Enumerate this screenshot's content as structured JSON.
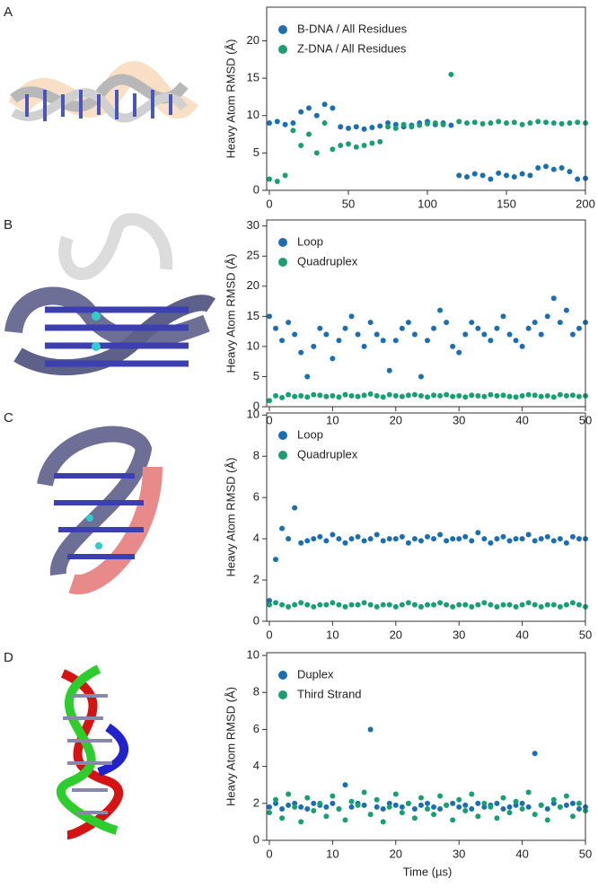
{
  "chart_data": [
    {
      "type": "scatter",
      "panel": "A",
      "ylabel": "Heavy Atom RMSD (Å)",
      "x": [
        0,
        5,
        10,
        15,
        20,
        25,
        30,
        35,
        40,
        45,
        50,
        55,
        60,
        65,
        70,
        75,
        80,
        85,
        90,
        95,
        100,
        105,
        110,
        115,
        120,
        125,
        130,
        135,
        140,
        145,
        150,
        155,
        160,
        165,
        170,
        175,
        180,
        185,
        190,
        195,
        200
      ],
      "series": [
        {
          "name": "B-DNA / All Residues",
          "color": "#1b6fb0",
          "values": [
            9,
            9.2,
            8.8,
            9,
            10.5,
            11,
            10,
            11.5,
            11,
            8.5,
            8.3,
            8.5,
            8.2,
            8.4,
            8.6,
            9,
            8.8,
            8.5,
            8.7,
            9,
            9.2,
            8.8,
            9,
            8.7,
            2,
            1.8,
            2.2,
            2,
            1.5,
            2.3,
            2,
            1.8,
            2.2,
            2,
            3,
            3.2,
            2.8,
            3,
            2.5,
            1.5,
            1.6
          ]
        },
        {
          "name": "Z-DNA / All Residues",
          "color": "#1a9e74",
          "values": [
            1.5,
            1.2,
            2,
            8,
            6,
            7.5,
            5,
            9,
            5.5,
            6,
            6.2,
            5.8,
            6,
            6.3,
            6.5,
            8.5,
            8.3,
            8.8,
            8.5,
            8.7,
            8.9,
            9,
            8.8,
            15.5,
            9.2,
            9,
            9.1,
            8.9,
            9,
            9.2,
            9,
            9.1,
            8.8,
            9,
            9.2,
            9.1,
            9,
            8.9,
            9,
            9.1,
            9
          ]
        }
      ],
      "xlim": [
        0,
        200
      ],
      "xticks": [
        0,
        50,
        100,
        150,
        200
      ],
      "ylim": [
        0,
        24.5
      ],
      "yticks": [
        0,
        5,
        10,
        15,
        20
      ]
    },
    {
      "type": "scatter",
      "panel": "B",
      "ylabel": "Heavy Atom RMSD (Å)",
      "x": [
        0,
        1,
        2,
        3,
        4,
        5,
        6,
        7,
        8,
        9,
        10,
        11,
        12,
        13,
        14,
        15,
        16,
        17,
        18,
        19,
        20,
        21,
        22,
        23,
        24,
        25,
        26,
        27,
        28,
        29,
        30,
        31,
        32,
        33,
        34,
        35,
        36,
        37,
        38,
        39,
        40,
        41,
        42,
        43,
        44,
        45,
        46,
        47,
        48,
        49,
        50
      ],
      "series": [
        {
          "name": "Loop",
          "color": "#1b6fb0",
          "values": [
            15,
            13,
            11,
            14,
            12,
            9,
            5,
            10,
            13,
            12,
            8,
            11,
            13,
            15,
            12,
            10,
            14,
            12,
            11,
            6,
            11,
            13,
            14,
            12,
            5,
            11,
            13,
            16,
            14,
            10,
            9,
            12,
            14,
            13,
            12,
            11,
            13,
            15,
            12,
            11,
            10,
            13,
            14,
            12,
            15,
            18,
            14,
            16,
            12,
            13,
            14
          ]
        },
        {
          "name": "Quadruplex",
          "color": "#1a9e74",
          "values": [
            1,
            1.8,
            1.5,
            2,
            1.7,
            1.8,
            1.6,
            2,
            1.9,
            1.7,
            1.8,
            1.6,
            2,
            1.8,
            1.7,
            1.9,
            2.1,
            1.8,
            1.6,
            2,
            1.8,
            1.7,
            1.9,
            2,
            1.8,
            1.6,
            1.9,
            1.8,
            2,
            1.7,
            1.8,
            1.6,
            1.9,
            1.8,
            1.7,
            2,
            1.8,
            1.9,
            1.7,
            1.6,
            1.8,
            2,
            1.9,
            1.7,
            1.8,
            1.6,
            2,
            1.8,
            1.9,
            1.7,
            1.8
          ]
        }
      ],
      "xlim": [
        0,
        50
      ],
      "xticks": [
        0,
        10,
        20,
        30,
        40,
        50
      ],
      "ylim": [
        0,
        31
      ],
      "yticks": [
        0,
        5,
        10,
        15,
        20,
        25,
        30
      ]
    },
    {
      "type": "scatter",
      "panel": "C",
      "ylabel": "Heavy Atom RMSD (Å)",
      "x": [
        0,
        1,
        2,
        3,
        4,
        5,
        6,
        7,
        8,
        9,
        10,
        11,
        12,
        13,
        14,
        15,
        16,
        17,
        18,
        19,
        20,
        21,
        22,
        23,
        24,
        25,
        26,
        27,
        28,
        29,
        30,
        31,
        32,
        33,
        34,
        35,
        36,
        37,
        38,
        39,
        40,
        41,
        42,
        43,
        44,
        45,
        46,
        47,
        48,
        49,
        50
      ],
      "series": [
        {
          "name": "Loop",
          "color": "#1b6fb0",
          "values": [
            1,
            3,
            4.5,
            4,
            5.5,
            3.8,
            3.9,
            4,
            4.1,
            3.9,
            4.2,
            4,
            3.8,
            4,
            4.1,
            3.9,
            4,
            4.2,
            3.9,
            4,
            4,
            4.1,
            3.8,
            4,
            3.9,
            4.1,
            4,
            4.2,
            3.9,
            4,
            4,
            4.1,
            3.9,
            4.3,
            4,
            3.8,
            4,
            4.1,
            3.9,
            4,
            4,
            4.2,
            3.9,
            4,
            4.1,
            3.9,
            4,
            3.8,
            4.1,
            4,
            4
          ]
        },
        {
          "name": "Quadruplex",
          "color": "#1a9e74",
          "values": [
            0.8,
            0.9,
            0.8,
            0.7,
            0.8,
            0.9,
            0.8,
            0.7,
            0.8,
            0.8,
            0.9,
            0.8,
            0.7,
            0.8,
            0.8,
            0.9,
            0.8,
            0.7,
            0.8,
            0.8,
            0.7,
            0.8,
            0.9,
            0.8,
            0.7,
            0.8,
            0.8,
            0.9,
            0.8,
            0.7,
            0.8,
            0.8,
            0.7,
            0.8,
            0.9,
            0.8,
            0.7,
            0.8,
            0.8,
            0.7,
            0.8,
            0.9,
            0.8,
            0.7,
            0.8,
            0.8,
            0.7,
            0.8,
            0.9,
            0.8,
            0.7
          ]
        }
      ],
      "xlim": [
        0,
        50
      ],
      "xticks": [
        0,
        10,
        20,
        30,
        40,
        50
      ],
      "ylim": [
        0,
        10.1
      ],
      "yticks": [
        0,
        2,
        4,
        6,
        8,
        10
      ]
    },
    {
      "type": "scatter",
      "panel": "D",
      "ylabel": "Heavy Atom RMSD (Å)",
      "xlabel": "Time (µs)",
      "x": [
        0,
        1,
        2,
        3,
        4,
        5,
        6,
        7,
        8,
        9,
        10,
        11,
        12,
        13,
        14,
        15,
        16,
        17,
        18,
        19,
        20,
        21,
        22,
        23,
        24,
        25,
        26,
        27,
        28,
        29,
        30,
        31,
        32,
        33,
        34,
        35,
        36,
        37,
        38,
        39,
        40,
        41,
        42,
        43,
        44,
        45,
        46,
        47,
        48,
        49,
        50
      ],
      "series": [
        {
          "name": "Duplex",
          "color": "#1b6fb0",
          "values": [
            1.8,
            2,
            1.7,
            1.9,
            2,
            1.8,
            1.7,
            2,
            1.9,
            1.8,
            2,
            1.7,
            3,
            1.8,
            2,
            1.9,
            6,
            1.8,
            1.7,
            2,
            1.9,
            1.8,
            2,
            1.7,
            1.9,
            2,
            1.8,
            1.7,
            1.9,
            2,
            1.8,
            1.9,
            1.7,
            2,
            1.8,
            1.9,
            2,
            1.7,
            1.8,
            1.9,
            2,
            1.8,
            4.7,
            1.9,
            1.7,
            2,
            1.8,
            1.9,
            2,
            1.7,
            1.8
          ]
        },
        {
          "name": "Third Strand",
          "color": "#1a9e74",
          "values": [
            1.5,
            2.2,
            1.2,
            2.5,
            1.8,
            1,
            2.3,
            1.6,
            2,
            1.3,
            2.4,
            1.7,
            1.1,
            2.1,
            1.9,
            2.6,
            1.4,
            2.2,
            1,
            1.8,
            2.5,
            1.5,
            2,
            1.2,
            2.3,
            1.7,
            1.4,
            2.4,
            1.9,
            1.1,
            2.2,
            1.6,
            2.5,
            1.3,
            2,
            1.8,
            1.2,
            2.3,
            1.5,
            2.1,
            1.7,
            2.6,
            1.4,
            1.9,
            1.1,
            2.2,
            1.8,
            2.4,
            1.3,
            2,
            1.6
          ]
        }
      ],
      "xlim": [
        0,
        50
      ],
      "xticks": [
        0,
        10,
        20,
        30,
        40,
        50
      ],
      "ylim": [
        0,
        10.15
      ],
      "yticks": [
        0,
        2,
        4,
        6,
        8,
        10
      ]
    }
  ]
}
